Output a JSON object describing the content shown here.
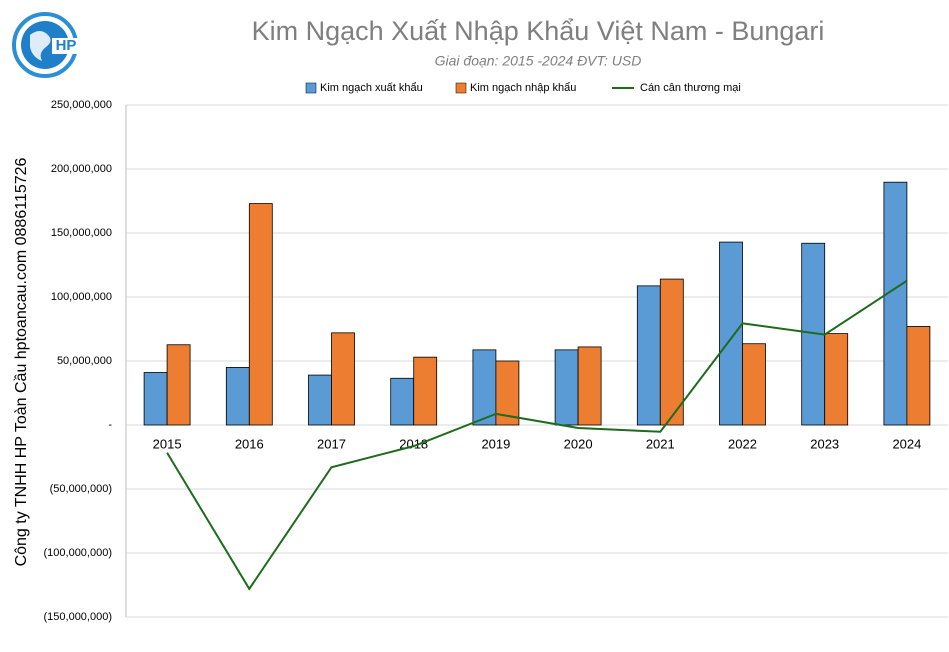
{
  "chart_data": {
    "type": "bar-line",
    "title": "Kim Ngạch Xuất Nhập Khẩu Việt Nam - Bungari",
    "subtitle": "Giai đoạn: 2015 -2024  ĐVT: USD",
    "side_label": "Công ty TNHH HP Toàn Cầu hptoancau.com 0886115726",
    "logo_text": "HP",
    "categories": [
      "2015",
      "2016",
      "2017",
      "2018",
      "2019",
      "2020",
      "2021",
      "2022",
      "2023",
      "2024"
    ],
    "series": [
      {
        "name": "Kim ngạch xuất khẩu",
        "type": "bar",
        "color": "#5b9bd5",
        "values": [
          41000000,
          45000000,
          39000000,
          36500000,
          58700000,
          58700000,
          108700000,
          142900000,
          142000000,
          189700000
        ]
      },
      {
        "name": "Kim ngạch nhập khẩu",
        "type": "bar",
        "color": "#ed7d31",
        "values": [
          62700000,
          173000000,
          72000000,
          53000000,
          50000000,
          61000000,
          114000000,
          63500000,
          71400000,
          77000000
        ]
      },
      {
        "name": "Cán cân thương mại",
        "type": "line",
        "color": "#1e6b1e",
        "values": [
          -21700000,
          -128000000,
          -33000000,
          -16500000,
          8700000,
          -2300000,
          -5300000,
          79400000,
          70600000,
          112700000
        ]
      }
    ],
    "ylim": [
      -150000000,
      250000000
    ],
    "yticks": [
      {
        "value": -150000000,
        "label": "(150,000,000)"
      },
      {
        "value": -100000000,
        "label": "(100,000,000)"
      },
      {
        "value": -50000000,
        "label": "(50,000,000)"
      },
      {
        "value": 0,
        "label": "-"
      },
      {
        "value": 50000000,
        "label": "50,000,000"
      },
      {
        "value": 100000000,
        "label": "100,000,000"
      },
      {
        "value": 150000000,
        "label": "150,000,000"
      },
      {
        "value": 200000000,
        "label": "200,000,000"
      },
      {
        "value": 250000000,
        "label": "250,000,000"
      }
    ],
    "grid": true
  }
}
